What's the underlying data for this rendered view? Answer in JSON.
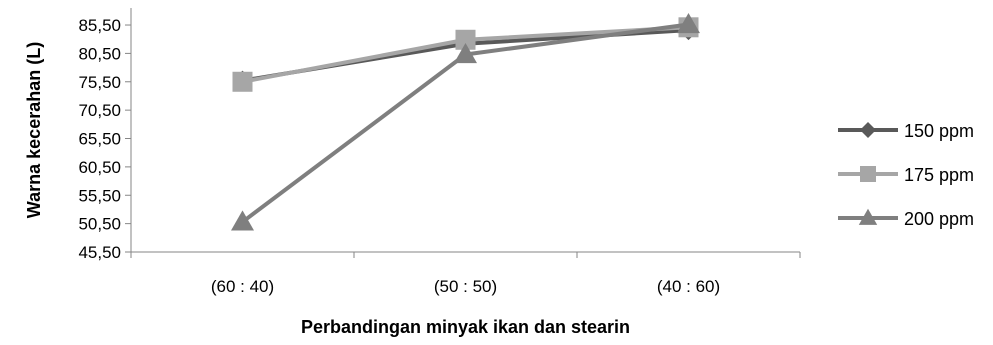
{
  "chart_data": {
    "type": "line",
    "title": "",
    "xlabel": "Perbandingan minyak ikan dan stearin",
    "ylabel": "Warna kecerahan (L)",
    "categories": [
      "(60 : 40)",
      "(50 : 50)",
      "(40 : 60)"
    ],
    "ylim": [
      45.5,
      88.5
    ],
    "yticks": [
      45.5,
      50.5,
      55.5,
      60.5,
      65.5,
      70.5,
      75.5,
      80.5,
      85.5
    ],
    "ytick_labels": [
      "45,50",
      "50,50",
      "55,50",
      "60,50",
      "65,50",
      "70,50",
      "75,50",
      "80,50",
      "85,50"
    ],
    "grid": false,
    "legend_position": "right",
    "series": [
      {
        "name": "150 ppm",
        "values": [
          75.7,
          82.2,
          84.6
        ],
        "color": "#595959",
        "marker": "diamond"
      },
      {
        "name": "175 ppm",
        "values": [
          75.5,
          82.9,
          85.1
        ],
        "color": "#a6a6a6",
        "marker": "square"
      },
      {
        "name": "200 ppm",
        "values": [
          50.8,
          80.3,
          85.6
        ],
        "color": "#7f7f7f",
        "marker": "triangle"
      }
    ]
  }
}
